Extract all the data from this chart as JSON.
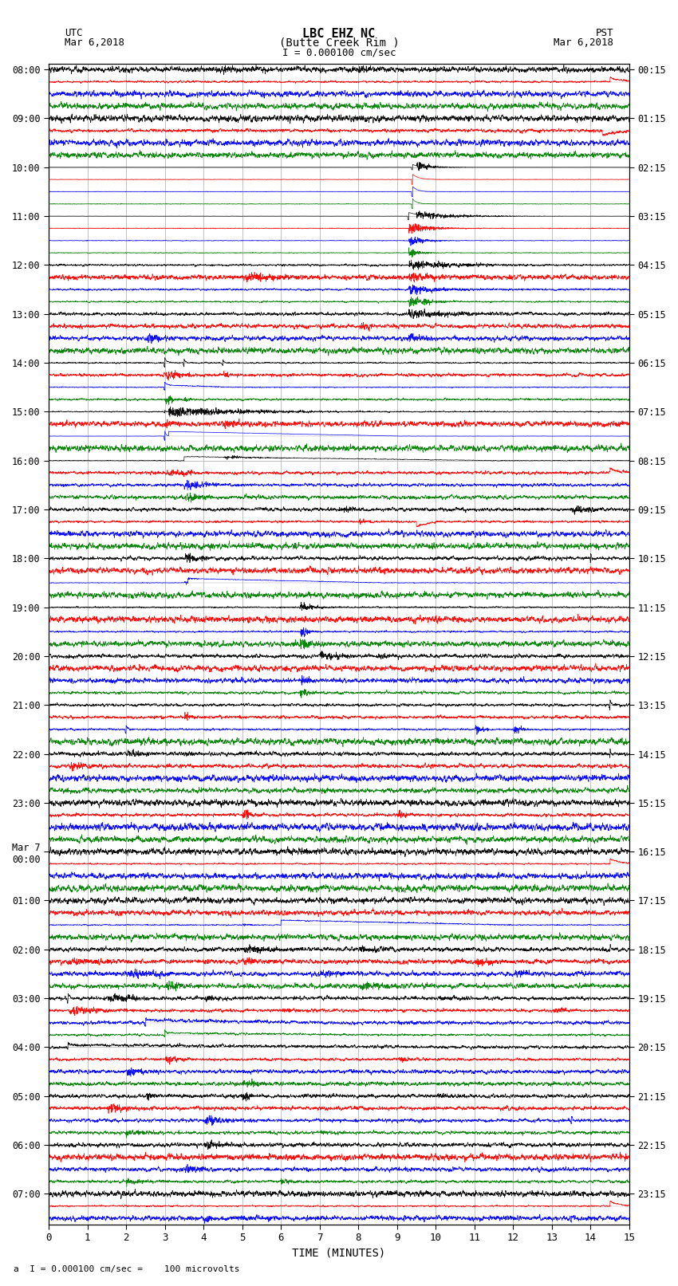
{
  "title_line1": "LBC EHZ NC",
  "title_line2": "(Butte Creek Rim )",
  "scale_text": "I = 0.000100 cm/sec",
  "left_label": "UTC",
  "left_date": "Mar 6,2018",
  "right_label": "PST",
  "right_date": "Mar 6,2018",
  "bottom_label": "TIME (MINUTES)",
  "footnote": "a  I = 0.000100 cm/sec =    100 microvolts",
  "xlim": [
    0,
    15
  ],
  "xticks": [
    0,
    1,
    2,
    3,
    4,
    5,
    6,
    7,
    8,
    9,
    10,
    11,
    12,
    13,
    14,
    15
  ],
  "utc_times": [
    "08:00",
    "",
    "",
    "",
    "09:00",
    "",
    "",
    "",
    "10:00",
    "",
    "",
    "",
    "11:00",
    "",
    "",
    "",
    "12:00",
    "",
    "",
    "",
    "13:00",
    "",
    "",
    "",
    "14:00",
    "",
    "",
    "",
    "15:00",
    "",
    "",
    "",
    "16:00",
    "",
    "",
    "",
    "17:00",
    "",
    "",
    "",
    "18:00",
    "",
    "",
    "",
    "19:00",
    "",
    "",
    "",
    "20:00",
    "",
    "",
    "",
    "21:00",
    "",
    "",
    "",
    "22:00",
    "",
    "",
    "",
    "23:00",
    "",
    "",
    "",
    "Mar 7\n00:00",
    "",
    "",
    "",
    "01:00",
    "",
    "",
    "",
    "02:00",
    "",
    "",
    "",
    "03:00",
    "",
    "",
    "",
    "04:00",
    "",
    "",
    "",
    "05:00",
    "",
    "",
    "",
    "06:00",
    "",
    "",
    "",
    "07:00",
    "",
    ""
  ],
  "pst_times": [
    "00:15",
    "",
    "",
    "",
    "01:15",
    "",
    "",
    "",
    "02:15",
    "",
    "",
    "",
    "03:15",
    "",
    "",
    "",
    "04:15",
    "",
    "",
    "",
    "05:15",
    "",
    "",
    "",
    "06:15",
    "",
    "",
    "",
    "07:15",
    "",
    "",
    "",
    "08:15",
    "",
    "",
    "",
    "09:15",
    "",
    "",
    "",
    "10:15",
    "",
    "",
    "",
    "11:15",
    "",
    "",
    "",
    "12:15",
    "",
    "",
    "",
    "13:15",
    "",
    "",
    "",
    "14:15",
    "",
    "",
    "",
    "15:15",
    "",
    "",
    "",
    "16:15",
    "",
    "",
    "",
    "17:15",
    "",
    "",
    "",
    "18:15",
    "",
    "",
    "",
    "19:15",
    "",
    "",
    "",
    "20:15",
    "",
    "",
    "",
    "21:15",
    "",
    "",
    "",
    "22:15",
    "",
    "",
    "",
    "23:15",
    "",
    ""
  ],
  "colors": [
    "black",
    "red",
    "blue",
    "green"
  ],
  "bg_color": "#ffffff",
  "grid_color": "#aaaaaa"
}
